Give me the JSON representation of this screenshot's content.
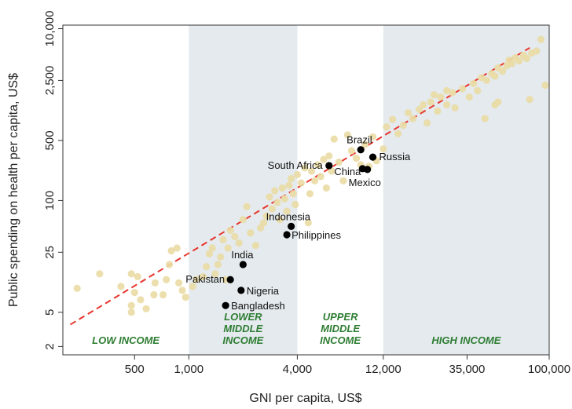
{
  "chart_data": {
    "type": "scatter",
    "title": "",
    "xlabel": "GNI per capita, US$",
    "ylabel": "Public spending on health per capita, US$",
    "x_scale": "log",
    "y_scale": "log",
    "xlim": [
      200,
      100000
    ],
    "ylim": [
      1.6,
      11000
    ],
    "x_ticks": [
      {
        "value": 500,
        "label": "500"
      },
      {
        "value": 1000,
        "label": "1,000"
      },
      {
        "value": 4000,
        "label": "4,000"
      },
      {
        "value": 12000,
        "label": "12,000"
      },
      {
        "value": 35000,
        "label": "35,000"
      },
      {
        "value": 100000,
        "label": "100,000"
      }
    ],
    "y_ticks": [
      {
        "value": 2,
        "label": "2"
      },
      {
        "value": 5,
        "label": "5"
      },
      {
        "value": 25,
        "label": "25"
      },
      {
        "value": 100,
        "label": "100"
      },
      {
        "value": 500,
        "label": "500"
      },
      {
        "value": 2500,
        "label": "2,500"
      },
      {
        "value": 10000,
        "label": "10,000"
      }
    ],
    "income_bands": [
      {
        "label_lines": [
          "LOW INCOME"
        ],
        "from": 200,
        "to": 1000,
        "shaded": false
      },
      {
        "label_lines": [
          "LOWER",
          "MIDDLE",
          "INCOME"
        ],
        "from": 1000,
        "to": 4000,
        "shaded": true
      },
      {
        "label_lines": [
          "UPPER",
          "MIDDLE",
          "INCOME"
        ],
        "from": 4000,
        "to": 12000,
        "shaded": false
      },
      {
        "label_lines": [
          "HIGH INCOME"
        ],
        "from": 12000,
        "to": 100000,
        "shaded": true
      }
    ],
    "trend_line": {
      "from": [
        220,
        3.6
      ],
      "to": [
        78000,
        6000
      ],
      "style": "dashed"
    },
    "highlighted_countries": [
      {
        "name": "Brazil",
        "x": 9000,
        "y": 390
      },
      {
        "name": "Russia",
        "x": 10500,
        "y": 320
      },
      {
        "name": "South Africa",
        "x": 6000,
        "y": 255
      },
      {
        "name": "China",
        "x": 9200,
        "y": 235
      },
      {
        "name": "Mexico",
        "x": 9800,
        "y": 230
      },
      {
        "name": "Indonesia",
        "x": 3700,
        "y": 50
      },
      {
        "name": "Philippines",
        "x": 3500,
        "y": 40
      },
      {
        "name": "India",
        "x": 2000,
        "y": 18
      },
      {
        "name": "Pakistan",
        "x": 1700,
        "y": 12
      },
      {
        "name": "Nigeria",
        "x": 1950,
        "y": 9
      },
      {
        "name": "Bangladesh",
        "x": 1600,
        "y": 6
      }
    ],
    "other_countries": [
      [
        240,
        9.5
      ],
      [
        320,
        14
      ],
      [
        420,
        10
      ],
      [
        480,
        14
      ],
      [
        520,
        13
      ],
      [
        500,
        8.5
      ],
      [
        480,
        6
      ],
      [
        480,
        5
      ],
      [
        540,
        7
      ],
      [
        580,
        5.5
      ],
      [
        640,
        8
      ],
      [
        650,
        11
      ],
      [
        720,
        8
      ],
      [
        750,
        12
      ],
      [
        780,
        18
      ],
      [
        800,
        26
      ],
      [
        860,
        28
      ],
      [
        880,
        11
      ],
      [
        920,
        9
      ],
      [
        960,
        7.5
      ],
      [
        1050,
        10
      ],
      [
        1100,
        12
      ],
      [
        1200,
        13
      ],
      [
        1250,
        17
      ],
      [
        1300,
        24
      ],
      [
        1350,
        28
      ],
      [
        1400,
        14
      ],
      [
        1450,
        18
      ],
      [
        1500,
        22
      ],
      [
        1550,
        35
      ],
      [
        1600,
        12
      ],
      [
        1650,
        28
      ],
      [
        1700,
        45
      ],
      [
        1800,
        38
      ],
      [
        1900,
        32
      ],
      [
        2000,
        60
      ],
      [
        2100,
        85
      ],
      [
        2200,
        42
      ],
      [
        2350,
        30
      ],
      [
        2500,
        48
      ],
      [
        2600,
        55
      ],
      [
        2700,
        66
      ],
      [
        2800,
        110
      ],
      [
        2900,
        80
      ],
      [
        3000,
        130
      ],
      [
        3100,
        95
      ],
      [
        3200,
        60
      ],
      [
        3300,
        140
      ],
      [
        3400,
        105
      ],
      [
        3500,
        75
      ],
      [
        3600,
        150
      ],
      [
        3700,
        180
      ],
      [
        3800,
        120
      ],
      [
        3900,
        90
      ],
      [
        4000,
        200
      ],
      [
        4200,
        160
      ],
      [
        4400,
        240
      ],
      [
        4600,
        55
      ],
      [
        4700,
        120
      ],
      [
        4800,
        220
      ],
      [
        5000,
        170
      ],
      [
        5200,
        260
      ],
      [
        5400,
        190
      ],
      [
        5600,
        300
      ],
      [
        5800,
        140
      ],
      [
        6000,
        330
      ],
      [
        6200,
        220
      ],
      [
        6400,
        520
      ],
      [
        6800,
        280
      ],
      [
        7200,
        170
      ],
      [
        7600,
        580
      ],
      [
        8000,
        380
      ],
      [
        8500,
        310
      ],
      [
        9000,
        260
      ],
      [
        9500,
        450
      ],
      [
        10000,
        250
      ],
      [
        10500,
        550
      ],
      [
        11000,
        290
      ],
      [
        12000,
        400
      ],
      [
        12500,
        720
      ],
      [
        13500,
        880
      ],
      [
        14500,
        600
      ],
      [
        15500,
        750
      ],
      [
        16500,
        1050
      ],
      [
        17500,
        900
      ],
      [
        19000,
        1150
      ],
      [
        20000,
        1300
      ],
      [
        21000,
        800
      ],
      [
        22000,
        1400
      ],
      [
        24000,
        1100
      ],
      [
        25000,
        1600
      ],
      [
        27000,
        1300
      ],
      [
        29000,
        1800
      ],
      [
        30000,
        1200
      ],
      [
        33000,
        2000
      ],
      [
        36000,
        1600
      ],
      [
        38000,
        2300
      ],
      [
        40000,
        1900
      ],
      [
        42000,
        2700
      ],
      [
        45000,
        2500
      ],
      [
        48000,
        3000
      ],
      [
        50000,
        2800
      ],
      [
        52000,
        3500
      ],
      [
        55000,
        3200
      ],
      [
        58000,
        3700
      ],
      [
        60000,
        4300
      ],
      [
        62000,
        3900
      ],
      [
        65000,
        4600
      ],
      [
        68000,
        4200
      ],
      [
        72000,
        4900
      ],
      [
        75000,
        4500
      ],
      [
        78000,
        1500
      ],
      [
        80000,
        5200
      ],
      [
        85000,
        5500
      ],
      [
        90000,
        7500
      ],
      [
        95000,
        2200
      ],
      [
        50000,
        1300
      ],
      [
        52000,
        1400
      ],
      [
        44000,
        900
      ],
      [
        27000,
        1900
      ],
      [
        23000,
        1700
      ]
    ],
    "grid": false,
    "legend": "none"
  }
}
